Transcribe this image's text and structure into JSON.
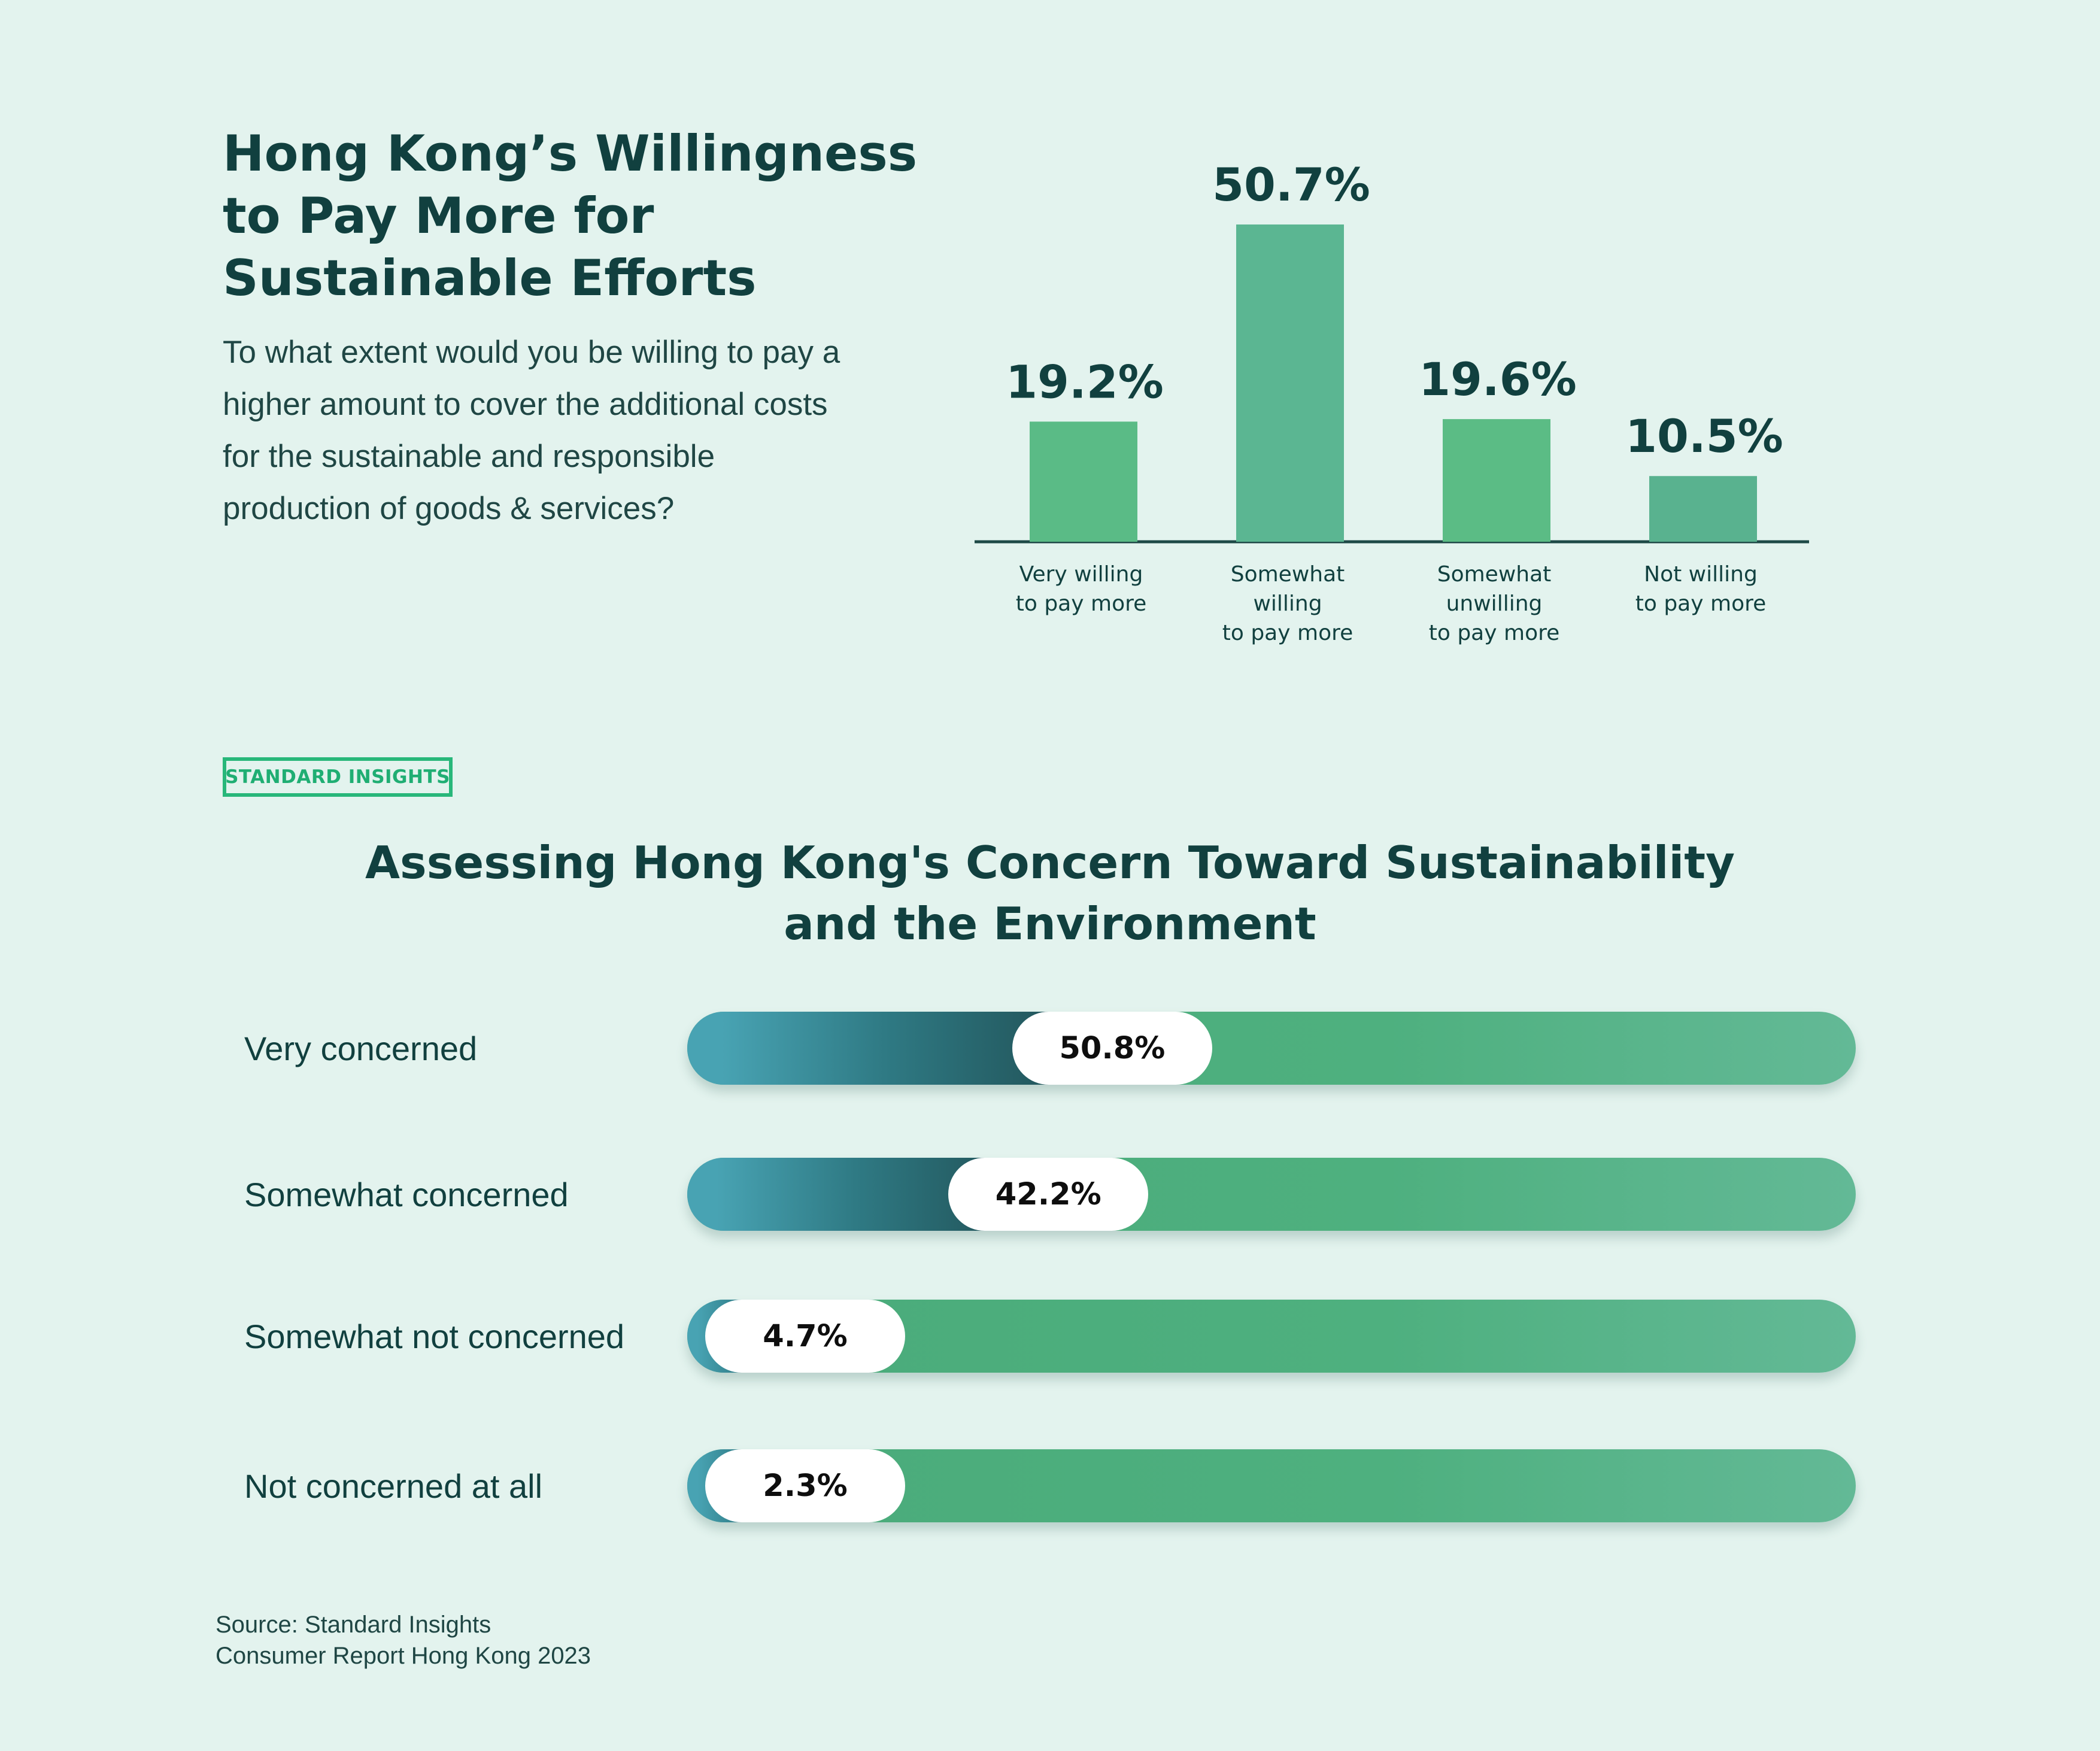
{
  "chart_data": [
    {
      "type": "bar",
      "title": "Hong Kong’s Willingness to Pay More for Sustainable Efforts",
      "title_lines": [
        "Hong Kong’s Willingness",
        "to Pay More for",
        "Sustainable Efforts"
      ],
      "question_lines": [
        "To what extent would you be willing to pay a",
        "higher amount to cover the additional costs",
        "for the sustainable and responsible",
        "production of goods & services?"
      ],
      "categories": [
        [
          "Very willing",
          "to pay more"
        ],
        [
          "Somewhat",
          "willing",
          "to pay more"
        ],
        [
          "Somewhat",
          "unwilling",
          "to pay more"
        ],
        [
          "Not willing",
          "to pay more"
        ]
      ],
      "values": [
        19.2,
        50.7,
        19.6,
        10.5
      ],
      "value_labels": [
        "19.2%",
        "50.7%",
        "19.6%",
        "10.5%"
      ],
      "bar_colors": [
        "#5abb86",
        "#5bb692",
        "#5bbc85",
        "#59b28f"
      ],
      "unit": "%",
      "ylim": [
        0,
        50.7
      ]
    },
    {
      "type": "bar",
      "orientation": "horizontal",
      "title": "Assessing Hong Kong's Concern Toward Sustainability and the Environment",
      "title_lines": [
        "Assessing Hong Kong's Concern Toward Sustainability",
        "and the Environment"
      ],
      "categories": [
        "Very concerned",
        "Somewhat concerned",
        "Somewhat not concerned",
        "Not concerned at all"
      ],
      "values": [
        50.8,
        42.2,
        4.7,
        2.3
      ],
      "value_labels": [
        "50.8%",
        "42.2%",
        "4.7%",
        "2.3%"
      ],
      "unit": "%",
      "xlim": [
        0,
        100
      ]
    }
  ],
  "badge": "STANDARD INSIGHTS",
  "source": [
    "Source: Standard Insights",
    "Consumer Report Hong Kong 2023"
  ]
}
